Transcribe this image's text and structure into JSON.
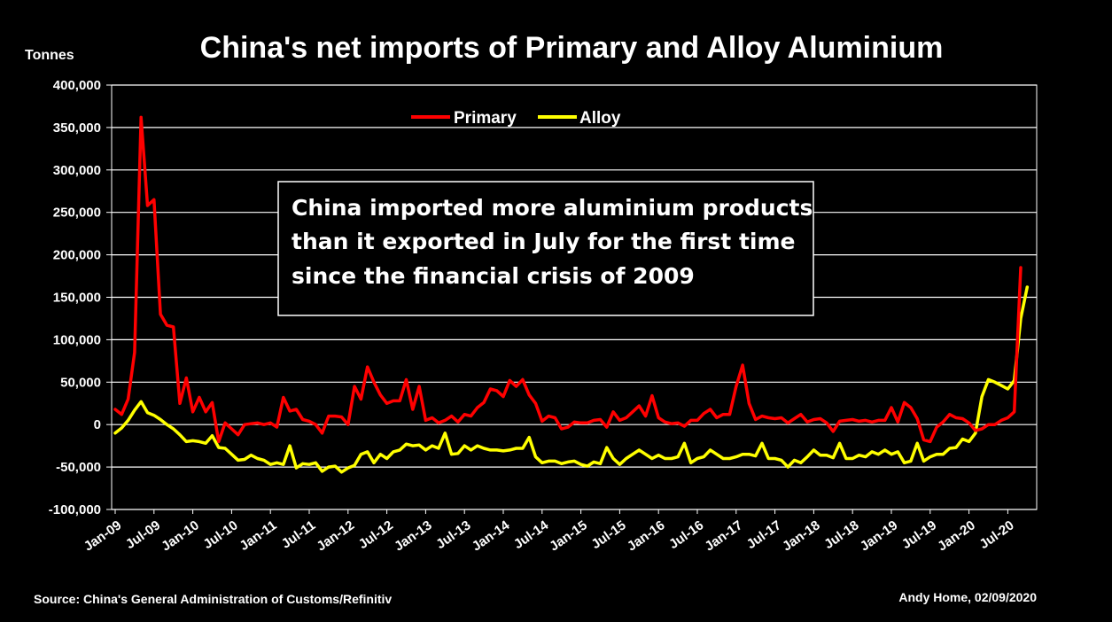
{
  "chart_data": {
    "type": "line",
    "title": "China's net imports of Primary and Alloy Aluminium",
    "ylabel": "Tonnes",
    "xlabel": "",
    "ylim": [
      -100000,
      400000
    ],
    "y_ticks": [
      "-100,000",
      "-50,000",
      "0",
      "50,000",
      "100,000",
      "150,000",
      "200,000",
      "250,000",
      "300,000",
      "350,000",
      "400,000"
    ],
    "x_tick_labels": [
      "Jan-09",
      "Jul-09",
      "Jan-10",
      "Jul-10",
      "Jan-11",
      "Jul-11",
      "Jan-12",
      "Jul-12",
      "Jan-13",
      "Jul-13",
      "Jan-14",
      "Jul-14",
      "Jan-15",
      "Jul-15",
      "Jan-16",
      "Jul-16",
      "Jan-17",
      "Jul-17",
      "Jan-18",
      "Jul-18",
      "Jan-19",
      "Jul-19",
      "Jan-20",
      "Jul-20"
    ],
    "grid": true,
    "legend_position": "top-left",
    "annotation": [
      "China imported more aluminium products",
      "than it exported in July for the first time",
      "since the financial crisis of 2009"
    ],
    "series": [
      {
        "name": "Primary",
        "color": "#ff0000",
        "values": [
          18000,
          12000,
          30000,
          85000,
          362000,
          258000,
          265000,
          130000,
          117000,
          115000,
          25000,
          55000,
          15000,
          32000,
          15000,
          26000,
          -20000,
          2000,
          -5000,
          -12000,
          0,
          1000,
          2000,
          0,
          2000,
          -3000,
          32000,
          16000,
          18000,
          6000,
          4000,
          0,
          -10000,
          10000,
          10000,
          9000,
          0,
          45000,
          30000,
          68000,
          50000,
          35000,
          25000,
          28000,
          28000,
          53000,
          18000,
          45000,
          5000,
          8000,
          2000,
          5000,
          10000,
          3000,
          12000,
          10000,
          20000,
          26000,
          42000,
          40000,
          33000,
          52000,
          45000,
          53000,
          35000,
          25000,
          4000,
          10000,
          8000,
          -5000,
          -3000,
          3000,
          2000,
          2000,
          5000,
          6000,
          -3000,
          15000,
          5000,
          8000,
          15000,
          22000,
          10000,
          34000,
          8000,
          3000,
          1000,
          2000,
          -2000,
          5000,
          5000,
          13000,
          18000,
          8000,
          12000,
          12000,
          45000,
          70000,
          25000,
          6000,
          10000,
          8000,
          7000,
          8000,
          2000,
          7000,
          12000,
          3000,
          6000,
          7000,
          2000,
          -8000,
          4000,
          5000,
          6000,
          4000,
          5000,
          3000,
          5000,
          5000,
          20000,
          3000,
          26000,
          20000,
          7000,
          -18000,
          -20000,
          -3000,
          3000,
          12000,
          8000,
          7000,
          2000,
          -7000,
          -5000,
          0,
          0,
          5000,
          8000,
          15000,
          185000
        ]
      },
      {
        "name": "Alloy",
        "color": "#ffff00",
        "values": [
          -10000,
          -4000,
          5000,
          17000,
          27000,
          14000,
          11000,
          6000,
          0,
          -5000,
          -12000,
          -20000,
          -19000,
          -20000,
          -22000,
          -13000,
          -27000,
          -28000,
          -35000,
          -42000,
          -41000,
          -36000,
          -40000,
          -42000,
          -47000,
          -45000,
          -47000,
          -25000,
          -51000,
          -46000,
          -47000,
          -45000,
          -55000,
          -50000,
          -49000,
          -56000,
          -51000,
          -48000,
          -35000,
          -32000,
          -45000,
          -35000,
          -40000,
          -32000,
          -30000,
          -23000,
          -25000,
          -24000,
          -30000,
          -25000,
          -28000,
          -10000,
          -35000,
          -34000,
          -25000,
          -30000,
          -25000,
          -28000,
          -30000,
          -30000,
          -31000,
          -30000,
          -28000,
          -28000,
          -15000,
          -38000,
          -45000,
          -43000,
          -43000,
          -46000,
          -44000,
          -43000,
          -47000,
          -49000,
          -44000,
          -46000,
          -27000,
          -40000,
          -47000,
          -40000,
          -35000,
          -30000,
          -35000,
          -40000,
          -36000,
          -40000,
          -40000,
          -38000,
          -22000,
          -45000,
          -40000,
          -38000,
          -30000,
          -35000,
          -40000,
          -40000,
          -38000,
          -35000,
          -35000,
          -37000,
          -22000,
          -40000,
          -40000,
          -42000,
          -50000,
          -42000,
          -45000,
          -38000,
          -30000,
          -36000,
          -36000,
          -39000,
          -22000,
          -40000,
          -40000,
          -36000,
          -38000,
          -32000,
          -35000,
          -30000,
          -35000,
          -32000,
          -45000,
          -43000,
          -22000,
          -43000,
          -38000,
          -35000,
          -35000,
          -28000,
          -27000,
          -17000,
          -20000,
          -10000,
          33000,
          53000,
          50000,
          46000,
          42000,
          52000,
          125000,
          162000
        ]
      }
    ],
    "source": "Source: China's General Administration of Customs/Refinitiv",
    "credit": "Andy Home, 02/09/2020"
  }
}
